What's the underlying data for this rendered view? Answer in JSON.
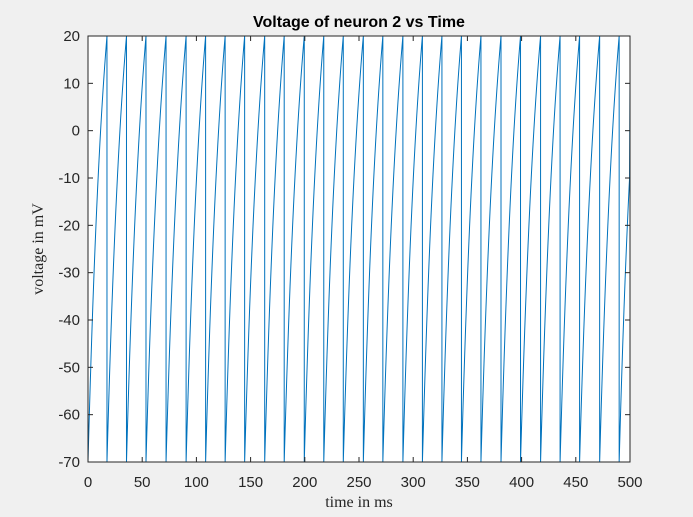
{
  "chart_data": {
    "type": "line",
    "title": "Voltage of neuron 2 vs Time",
    "xlabel": "time in ms",
    "ylabel": "voltage in mV",
    "xlim": [
      0,
      500
    ],
    "ylim": [
      -70,
      20
    ],
    "x_ticks": [
      "0",
      "50",
      "100",
      "150",
      "200",
      "250",
      "300",
      "350",
      "400",
      "450",
      "500"
    ],
    "y_ticks": [
      "20",
      "10",
      "0",
      "-10",
      "-20",
      "-30",
      "-40",
      "-50",
      "-60",
      "-70"
    ],
    "grid": false,
    "line_color": "#0072bd",
    "series": [
      {
        "spike_times": [
          17.5,
          35.5,
          53.5,
          72,
          90.5,
          108.5,
          126.5,
          144.5,
          163,
          181,
          199.5,
          217.5,
          235.5,
          254,
          272,
          290.5,
          308.5,
          326.5,
          344.5,
          362.5,
          381,
          399,
          417.5,
          435.5,
          453.5,
          472,
          490
        ],
        "reset_voltage": -70,
        "threshold_voltage": 20,
        "end_value": 11
      }
    ]
  }
}
